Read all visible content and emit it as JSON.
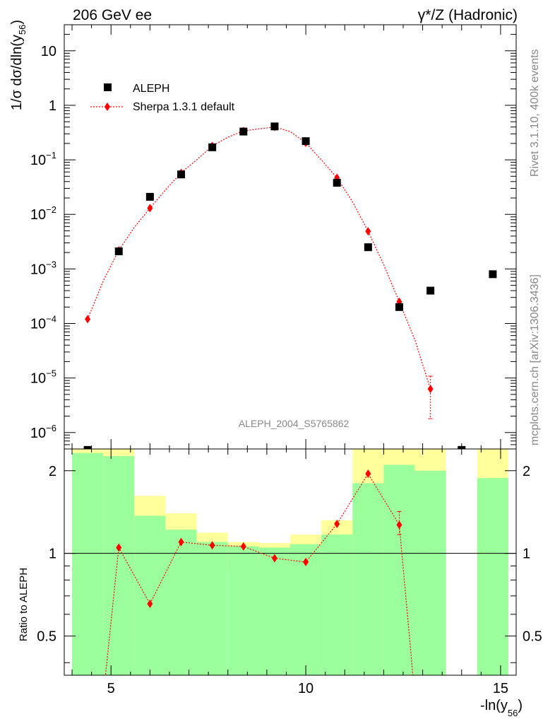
{
  "header": {
    "left": "206 GeV ee",
    "right": "γ*/Z (Hadronic)"
  },
  "side": {
    "rivet": "Rivet 3.1.10,  400k events",
    "mcplots": "mcplots.cern.ch [arXiv:1306.3436]"
  },
  "watermark": "ALEPH_2004_S5765862",
  "colors": {
    "data": "#000000",
    "mc": "#ff0000",
    "band_green": "#9bff9b",
    "band_yellow": "#ffff9b"
  },
  "chart_data": [
    {
      "type": "scatter",
      "title": "206 GeV ee  γ*/Z (Hadronic)",
      "ylabel_parts": {
        "pre": "1/σ  dσ/dln(y",
        "sub": "56",
        "post": ")"
      },
      "xlim": [
        3.8,
        15.4
      ],
      "ylim": [
        5e-07,
        30
      ],
      "yscale": "log",
      "yticks": [
        {
          "v": 1e-06,
          "base": "10",
          "exp": "−6"
        },
        {
          "v": 1e-05,
          "base": "10",
          "exp": "−5"
        },
        {
          "v": 0.0001,
          "base": "10",
          "exp": "−4"
        },
        {
          "v": 0.001,
          "base": "10",
          "exp": "−3"
        },
        {
          "v": 0.01,
          "base": "10",
          "exp": "−2"
        },
        {
          "v": 0.1,
          "base": "10",
          "exp": "−1"
        },
        {
          "v": 1,
          "base": "1",
          "exp": ""
        },
        {
          "v": 10,
          "base": "10",
          "exp": ""
        }
      ],
      "legend": [
        {
          "label": "ALEPH",
          "marker": "square"
        },
        {
          "label": "Sherpa 1.3.1 default",
          "marker": "diamond-dotted-line"
        }
      ],
      "series": [
        {
          "name": "ALEPH",
          "x": [
            4.4,
            5.2,
            6.0,
            6.8,
            7.6,
            8.4,
            9.2,
            10.0,
            10.8,
            11.6,
            12.4,
            13.2,
            14.0,
            14.8
          ],
          "y": [
            4.8e-07,
            0.0021,
            0.021,
            0.054,
            0.17,
            0.33,
            0.41,
            0.22,
            0.038,
            0.0025,
            0.0002,
            0.0004,
            4.8e-07,
            0.0008
          ]
        },
        {
          "name": "Sherpa 1.3.1 default",
          "x": [
            4.4,
            5.2,
            6.0,
            6.8,
            7.6,
            8.4,
            9.2,
            10.0,
            10.8,
            11.6,
            12.4,
            13.2
          ],
          "y": [
            0.00012,
            0.0022,
            0.013,
            0.058,
            0.18,
            0.34,
            0.4,
            0.205,
            0.047,
            0.0049,
            0.00025,
            6.3e-06
          ],
          "yerr_lo": [
            0,
            0,
            0,
            0,
            0,
            0,
            0,
            0,
            0,
            0,
            0,
            4.5e-06
          ],
          "yerr_hi": [
            0,
            0,
            0,
            0,
            0,
            0,
            0,
            0,
            0,
            0,
            0,
            4.5e-06
          ],
          "curve_x": [
            4.4,
            4.8,
            5.2,
            5.6,
            6.0,
            6.4,
            6.8,
            7.2,
            7.6,
            8.0,
            8.4,
            8.8,
            9.2,
            9.6,
            10.0,
            10.4,
            10.8,
            11.2,
            11.6,
            12.0,
            12.4,
            12.8,
            13.2
          ],
          "curve_y": [
            0.00012,
            0.0006,
            0.0022,
            0.0058,
            0.013,
            0.028,
            0.058,
            0.1,
            0.18,
            0.26,
            0.34,
            0.37,
            0.4,
            0.33,
            0.205,
            0.1,
            0.047,
            0.017,
            0.0049,
            0.0012,
            0.00025,
            5e-05,
            6.3e-06
          ]
        }
      ]
    },
    {
      "type": "bar",
      "ylabel": "Ratio to ALEPH",
      "xlabel_parts": {
        "pre": "-ln(y",
        "sub": "56",
        "post": ")"
      },
      "xlim": [
        3.8,
        15.4
      ],
      "ylim": [
        0.36,
        2.4
      ],
      "yscale": "log",
      "xticks": [
        {
          "v": 5,
          "label": "5"
        },
        {
          "v": 10,
          "label": "10"
        },
        {
          "v": 15,
          "label": "15"
        }
      ],
      "yticks": [
        {
          "v": 0.5,
          "label": "0.5"
        },
        {
          "v": 1,
          "label": "1"
        },
        {
          "v": 2,
          "label": "2"
        }
      ],
      "bands": [
        {
          "x0": 4.0,
          "x1": 4.8,
          "y_lo": 0.3,
          "y_hi": 2.6,
          "g_lo": 0.3,
          "g_hi": 2.32
        },
        {
          "x0": 4.8,
          "x1": 5.6,
          "y_lo": 0.3,
          "y_hi": 2.6,
          "g_lo": 0.3,
          "g_hi": 2.26
        },
        {
          "x0": 5.6,
          "x1": 6.4,
          "y_lo": 0.47,
          "y_hi": 1.62,
          "g_lo": 0.3,
          "g_hi": 1.37
        },
        {
          "x0": 6.4,
          "x1": 7.2,
          "y_lo": 0.66,
          "y_hi": 1.4,
          "g_lo": 0.3,
          "g_hi": 1.22
        },
        {
          "x0": 7.2,
          "x1": 8.0,
          "y_lo": 0.89,
          "y_hi": 1.19,
          "g_lo": 0.3,
          "g_hi": 1.1
        },
        {
          "x0": 8.0,
          "x1": 8.8,
          "y_lo": 0.93,
          "y_hi": 1.1,
          "g_lo": 0.3,
          "g_hi": 1.06
        },
        {
          "x0": 8.8,
          "x1": 9.6,
          "y_lo": 0.94,
          "y_hi": 1.09,
          "g_lo": 0.3,
          "g_hi": 1.05
        },
        {
          "x0": 9.6,
          "x1": 10.4,
          "y_lo": 0.88,
          "y_hi": 1.17,
          "g_lo": 0.3,
          "g_hi": 1.08
        },
        {
          "x0": 10.4,
          "x1": 11.2,
          "y_lo": 0.78,
          "y_hi": 1.32,
          "g_lo": 0.3,
          "g_hi": 1.17
        },
        {
          "x0": 11.2,
          "x1": 12.0,
          "y_lo": 0.3,
          "y_hi": 2.6,
          "g_lo": 0.3,
          "g_hi": 1.8
        },
        {
          "x0": 12.0,
          "x1": 12.8,
          "y_lo": 0.3,
          "y_hi": 2.6,
          "g_lo": 0.3,
          "g_hi": 2.1
        },
        {
          "x0": 12.8,
          "x1": 13.6,
          "y_lo": 0.3,
          "y_hi": 2.6,
          "g_lo": 0.3,
          "g_hi": 2.0
        },
        {
          "x0": 14.4,
          "x1": 15.2,
          "y_lo": 0.3,
          "y_hi": 2.6,
          "g_lo": 0.3,
          "g_hi": 1.88
        }
      ],
      "series": [
        {
          "name": "Sherpa 1.3.1 default / ALEPH",
          "x": [
            5.2,
            6.0,
            6.8,
            7.6,
            8.4,
            9.2,
            10.0,
            10.8,
            11.6,
            12.4
          ],
          "y": [
            1.05,
            0.655,
            1.1,
            1.07,
            1.06,
            0.96,
            0.93,
            1.28,
            1.95,
            1.27
          ],
          "yerr_lo": [
            0,
            0,
            0,
            0,
            0,
            0,
            0,
            0,
            0,
            0.1
          ],
          "yerr_hi": [
            0,
            0,
            0,
            0,
            0,
            0,
            0,
            0,
            0,
            0.15
          ],
          "line_x": [
            4.8,
            5.2,
            6.0,
            6.8,
            7.6,
            8.4,
            9.2,
            10.0,
            10.8,
            11.6,
            12.4,
            12.8
          ],
          "line_y": [
            0.3,
            1.05,
            0.655,
            1.1,
            1.07,
            1.06,
            0.96,
            0.93,
            1.28,
            1.95,
            1.27,
            0.3
          ]
        }
      ]
    }
  ]
}
